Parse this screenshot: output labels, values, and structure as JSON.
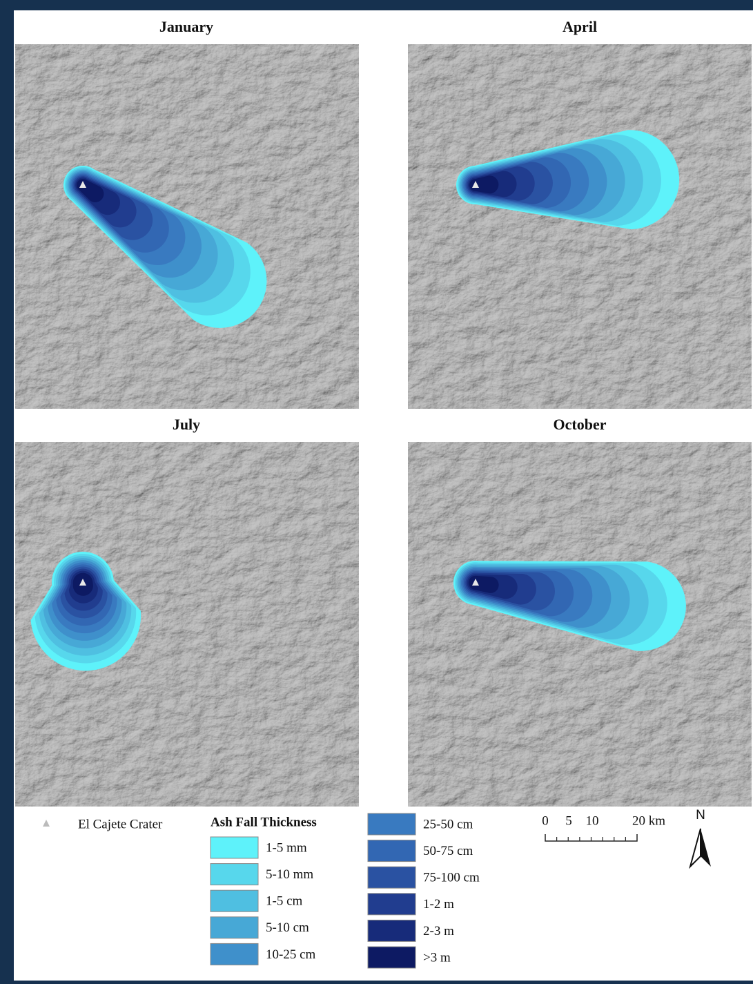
{
  "panels": [
    {
      "title": "January"
    },
    {
      "title": "April"
    },
    {
      "title": "July"
    },
    {
      "title": "October"
    }
  ],
  "legend": {
    "crater_label": "El Cajete Crater",
    "title": "Ash Fall Thickness",
    "classes": [
      {
        "label": "1-5 mm",
        "color": "#5ef2fa"
      },
      {
        "label": "5-10 mm",
        "color": "#57d7ec"
      },
      {
        "label": "1-5 cm",
        "color": "#4fbfe1"
      },
      {
        "label": "5-10 cm",
        "color": "#47a8d6"
      },
      {
        "label": "10-25 cm",
        "color": "#3f90cb"
      },
      {
        "label": "25-50 cm",
        "color": "#397ac0"
      },
      {
        "label": "50-75 cm",
        "color": "#3267b3"
      },
      {
        "label": "75-100 cm",
        "color": "#2a52a2"
      },
      {
        "label": "1-2 m",
        "color": "#213d8f"
      },
      {
        "label": "2-3 m",
        "color": "#172b7a"
      },
      {
        "label": ">3 m",
        "color": "#0d1a63"
      }
    ]
  },
  "scale_bar": {
    "labels": [
      "0",
      "5",
      "10",
      "20 km"
    ]
  },
  "north": "N"
}
